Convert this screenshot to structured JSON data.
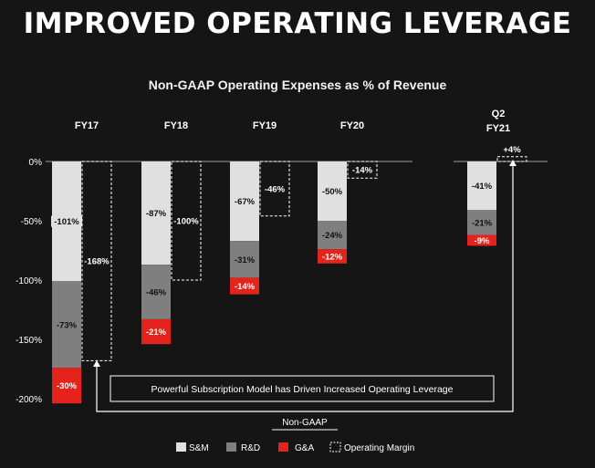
{
  "title": "IMPROVED OPERATING LEVERAGE",
  "chart_data": {
    "type": "bar",
    "title": "Non-GAAP Operating Expenses as % of Revenue",
    "categories": [
      "FY17",
      "FY18",
      "FY19",
      "FY20",
      "Q2 FY21"
    ],
    "yticks": [
      "0%",
      "-50%",
      "-100%",
      "-150%",
      "-200%"
    ],
    "ylim": [
      -200,
      0
    ],
    "series": [
      {
        "name": "S&M",
        "color": "#e0e0e0",
        "values": [
          -101,
          -87,
          -67,
          -50,
          -41
        ],
        "labels": [
          "-101%",
          "-87%",
          "-67%",
          "-50%",
          "-41%"
        ]
      },
      {
        "name": "R&D",
        "color": "#7f7f7f",
        "values": [
          -73,
          -46,
          -31,
          -24,
          -21
        ],
        "labels": [
          "-73%",
          "-46%",
          "-31%",
          "-24%",
          "-21%"
        ]
      },
      {
        "name": "G&A",
        "color": "#e3231c",
        "values": [
          -30,
          -21,
          -14,
          -12,
          -9
        ],
        "labels": [
          "-30%",
          "-21%",
          "-14%",
          "-12%",
          "-9%"
        ]
      },
      {
        "name": "Operating Margin",
        "color": "#ffffff",
        "style": "dashed",
        "values": [
          -168,
          -100,
          -46,
          -14,
          4
        ],
        "labels": [
          "-168%",
          "-100%",
          "-46%",
          "-14%",
          "+4%"
        ]
      }
    ],
    "annotation": "Powerful Subscription Model has Driven Increased Operating Leverage",
    "legend_title": "Non-GAAP",
    "legend_position": "bottom",
    "grid": false
  }
}
